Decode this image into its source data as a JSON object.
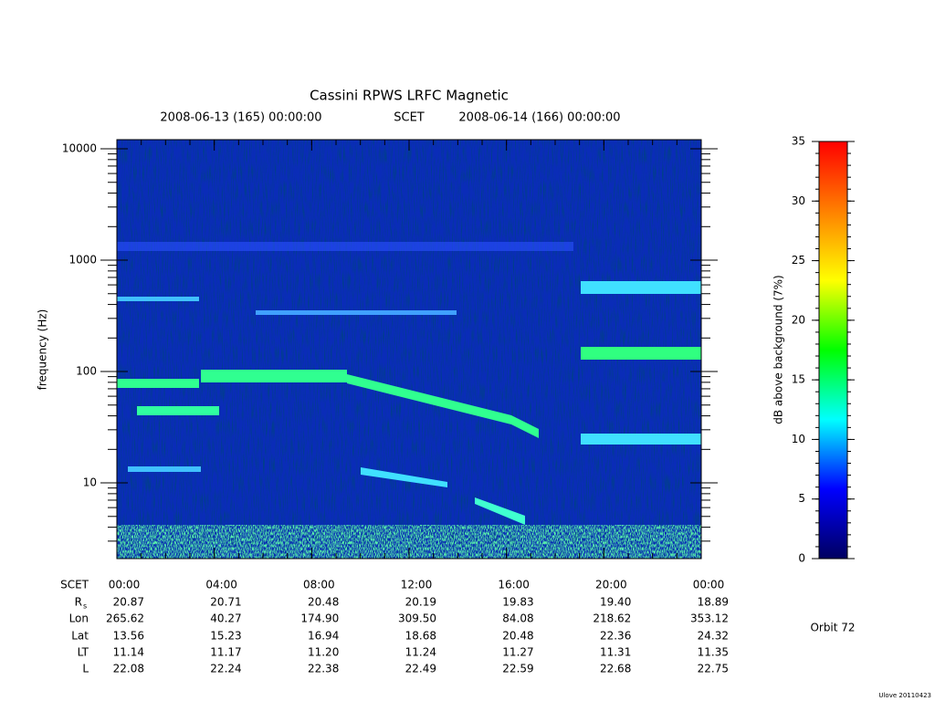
{
  "chart_data": {
    "type": "spectrogram",
    "title": "Cassini RPWS LRFC Magnetic",
    "subtitle_start": "2008-06-13 (165) 00:00:00",
    "subtitle_mid": "SCET",
    "subtitle_end": "2008-06-14 (166) 00:00:00",
    "ylabel": "frequency (Hz)",
    "yscale": "log",
    "ylim": [
      2.09,
      12080
    ],
    "yticks": [
      10,
      100,
      1000,
      10000
    ],
    "xlim": [
      0,
      24
    ],
    "xticks": [
      {
        "value": 0,
        "label": "00:00"
      },
      {
        "value": 4,
        "label": "04:00"
      },
      {
        "value": 8,
        "label": "08:00"
      },
      {
        "value": 12,
        "label": "12:00"
      },
      {
        "value": 16,
        "label": "16:00"
      },
      {
        "value": 20,
        "label": "20:00"
      },
      {
        "value": 24,
        "label": "00:00"
      }
    ],
    "ephemeris": {
      "time_label": "SCET",
      "rows": [
        {
          "name": "R",
          "sub": "s",
          "values": [
            "20.87",
            "20.71",
            "20.48",
            "20.19",
            "19.83",
            "19.40",
            "18.89"
          ]
        },
        {
          "name": "Lon",
          "values": [
            "265.62",
            "40.27",
            "174.90",
            "309.50",
            "84.08",
            "218.62",
            "353.12"
          ]
        },
        {
          "name": "Lat",
          "values": [
            "13.56",
            "15.23",
            "16.94",
            "18.68",
            "20.48",
            "22.36",
            "24.32"
          ]
        },
        {
          "name": "LT",
          "values": [
            "11.14",
            "11.17",
            "11.20",
            "11.24",
            "11.27",
            "11.31",
            "11.35"
          ]
        },
        {
          "name": "L",
          "values": [
            "22.08",
            "22.24",
            "22.38",
            "22.49",
            "22.59",
            "22.68",
            "22.75"
          ]
        }
      ]
    },
    "colorbar": {
      "label": "dB above background (7%)",
      "lim": [
        0,
        35
      ],
      "ticks": [
        0,
        5,
        10,
        15,
        20,
        25,
        30,
        35
      ],
      "colormap": [
        "#000060",
        "#0000ff",
        "#00ffff",
        "#00ff00",
        "#ffff00",
        "#ff8000",
        "#ff0000"
      ]
    },
    "orbit": "Orbit 72",
    "footer": "Ulove 20110423"
  }
}
